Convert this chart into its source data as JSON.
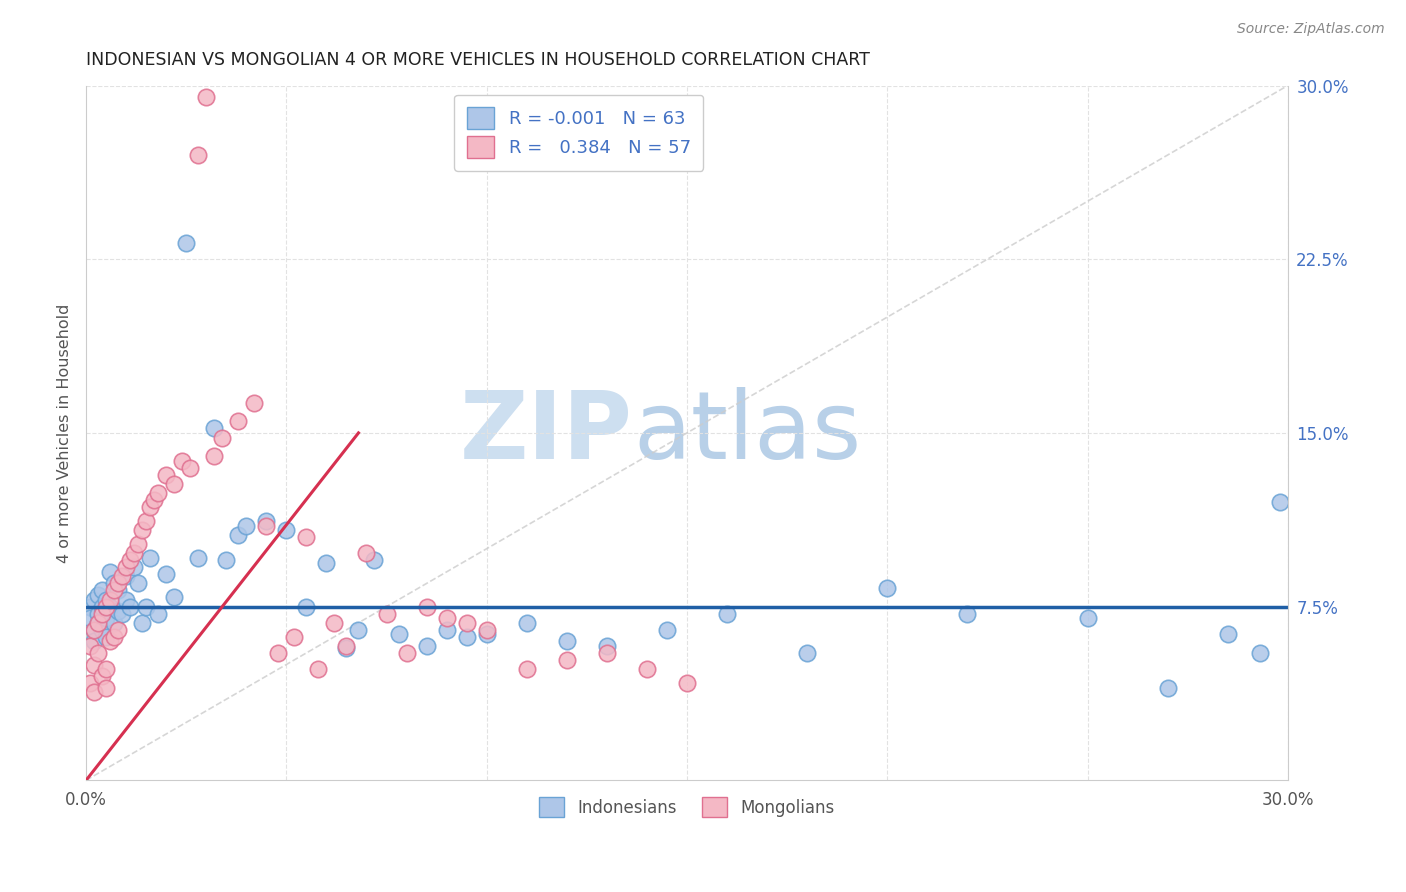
{
  "title": "INDONESIAN VS MONGOLIAN 4 OR MORE VEHICLES IN HOUSEHOLD CORRELATION CHART",
  "source": "Source: ZipAtlas.com",
  "ylabel": "4 or more Vehicles in Household",
  "xlim_min": 0.0,
  "xlim_max": 0.3,
  "ylim_min": 0.0,
  "ylim_max": 0.3,
  "ytick_vals": [
    0.075,
    0.15,
    0.225,
    0.3
  ],
  "ytick_labels": [
    "7.5%",
    "15.0%",
    "22.5%",
    "30.0%"
  ],
  "indonesian_color": "#aec6e8",
  "indonesian_edge": "#6aa3d5",
  "mongolian_color": "#f4b8c5",
  "mongolian_edge": "#e07090",
  "trend_indo_color": "#1f5fa6",
  "trend_mongo_color": "#d63050",
  "diag_color": "#cccccc",
  "grid_color": "#e2e2e2",
  "R_indo": -0.001,
  "N_indo": 63,
  "R_mongo": 0.384,
  "N_mongo": 57,
  "indonesian_x": [
    0.001,
    0.001,
    0.002,
    0.002,
    0.002,
    0.003,
    0.003,
    0.003,
    0.004,
    0.004,
    0.004,
    0.005,
    0.005,
    0.005,
    0.006,
    0.006,
    0.007,
    0.007,
    0.008,
    0.008,
    0.009,
    0.01,
    0.01,
    0.011,
    0.012,
    0.013,
    0.014,
    0.015,
    0.016,
    0.018,
    0.02,
    0.022,
    0.025,
    0.028,
    0.032,
    0.035,
    0.038,
    0.04,
    0.045,
    0.05,
    0.055,
    0.06,
    0.065,
    0.068,
    0.072,
    0.078,
    0.085,
    0.09,
    0.095,
    0.1,
    0.11,
    0.12,
    0.13,
    0.145,
    0.16,
    0.18,
    0.2,
    0.22,
    0.25,
    0.27,
    0.285,
    0.293,
    0.298
  ],
  "indonesian_y": [
    0.075,
    0.07,
    0.078,
    0.065,
    0.06,
    0.08,
    0.072,
    0.068,
    0.082,
    0.075,
    0.065,
    0.078,
    0.07,
    0.062,
    0.09,
    0.075,
    0.085,
    0.068,
    0.082,
    0.073,
    0.072,
    0.088,
    0.078,
    0.075,
    0.092,
    0.085,
    0.068,
    0.075,
    0.096,
    0.072,
    0.089,
    0.079,
    0.232,
    0.096,
    0.152,
    0.095,
    0.106,
    0.11,
    0.112,
    0.108,
    0.075,
    0.094,
    0.057,
    0.065,
    0.095,
    0.063,
    0.058,
    0.065,
    0.062,
    0.063,
    0.068,
    0.06,
    0.058,
    0.065,
    0.072,
    0.055,
    0.083,
    0.072,
    0.07,
    0.04,
    0.063,
    0.055,
    0.12
  ],
  "mongolian_x": [
    0.001,
    0.001,
    0.002,
    0.002,
    0.002,
    0.003,
    0.003,
    0.004,
    0.004,
    0.005,
    0.005,
    0.005,
    0.006,
    0.006,
    0.007,
    0.007,
    0.008,
    0.008,
    0.009,
    0.01,
    0.011,
    0.012,
    0.013,
    0.014,
    0.015,
    0.016,
    0.017,
    0.018,
    0.02,
    0.022,
    0.024,
    0.026,
    0.028,
    0.03,
    0.032,
    0.034,
    0.038,
    0.042,
    0.045,
    0.048,
    0.052,
    0.055,
    0.058,
    0.062,
    0.065,
    0.07,
    0.075,
    0.08,
    0.085,
    0.09,
    0.095,
    0.1,
    0.11,
    0.12,
    0.13,
    0.14,
    0.15
  ],
  "mongolian_y": [
    0.058,
    0.042,
    0.065,
    0.05,
    0.038,
    0.068,
    0.055,
    0.072,
    0.045,
    0.075,
    0.048,
    0.04,
    0.078,
    0.06,
    0.082,
    0.062,
    0.085,
    0.065,
    0.088,
    0.092,
    0.095,
    0.098,
    0.102,
    0.108,
    0.112,
    0.118,
    0.121,
    0.124,
    0.132,
    0.128,
    0.138,
    0.135,
    0.27,
    0.295,
    0.14,
    0.148,
    0.155,
    0.163,
    0.11,
    0.055,
    0.062,
    0.105,
    0.048,
    0.068,
    0.058,
    0.098,
    0.072,
    0.055,
    0.075,
    0.07,
    0.068,
    0.065,
    0.048,
    0.052,
    0.055,
    0.048,
    0.042
  ]
}
